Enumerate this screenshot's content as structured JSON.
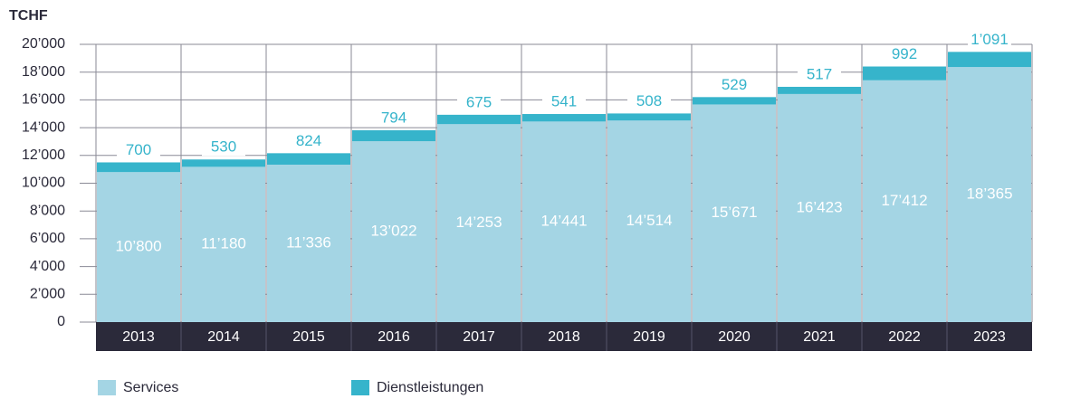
{
  "chart_data": {
    "type": "stacked_bar",
    "y_label": "TCHF",
    "categories": [
      "2013",
      "2014",
      "2015",
      "2016",
      "2017",
      "2018",
      "2019",
      "2020",
      "2021",
      "2022",
      "2023"
    ],
    "series": [
      {
        "name": "Services",
        "color": "#a4d5e4",
        "values": [
          10800,
          11180,
          11336,
          13022,
          14253,
          14441,
          14514,
          15671,
          16423,
          17412,
          18365
        ],
        "value_labels": [
          "10’800",
          "11’180",
          "11’336",
          "13’022",
          "14’253",
          "14’441",
          "14’514",
          "15’671",
          "16’423",
          "17’412",
          "18’365"
        ]
      },
      {
        "name": "Dienstleistungen",
        "color": "#36b4cb",
        "values": [
          700,
          530,
          824,
          794,
          675,
          541,
          508,
          529,
          517,
          992,
          1091
        ],
        "value_labels": [
          "700",
          "530",
          "824",
          "794",
          "675",
          "541",
          "508",
          "529",
          "517",
          "992",
          "1’091"
        ]
      }
    ],
    "ylim": [
      0,
      20000
    ],
    "yticks": [
      0,
      {
        "value": 2000,
        "label": "2’000"
      },
      {
        "value": 4000,
        "label": "4’000"
      },
      {
        "value": 6000,
        "label": "6’000"
      },
      {
        "value": 8000,
        "label": "8’000"
      },
      {
        "value": 10000,
        "label": "10’000"
      },
      {
        "value": 12000,
        "label": "12’000"
      },
      {
        "value": 14000,
        "label": "14’000"
      },
      {
        "value": 16000,
        "label": "16’000"
      },
      {
        "value": 18000,
        "label": "18’000"
      },
      {
        "value": 20000,
        "label": "20’000"
      }
    ],
    "grid": true,
    "legend": "bottom-left"
  }
}
